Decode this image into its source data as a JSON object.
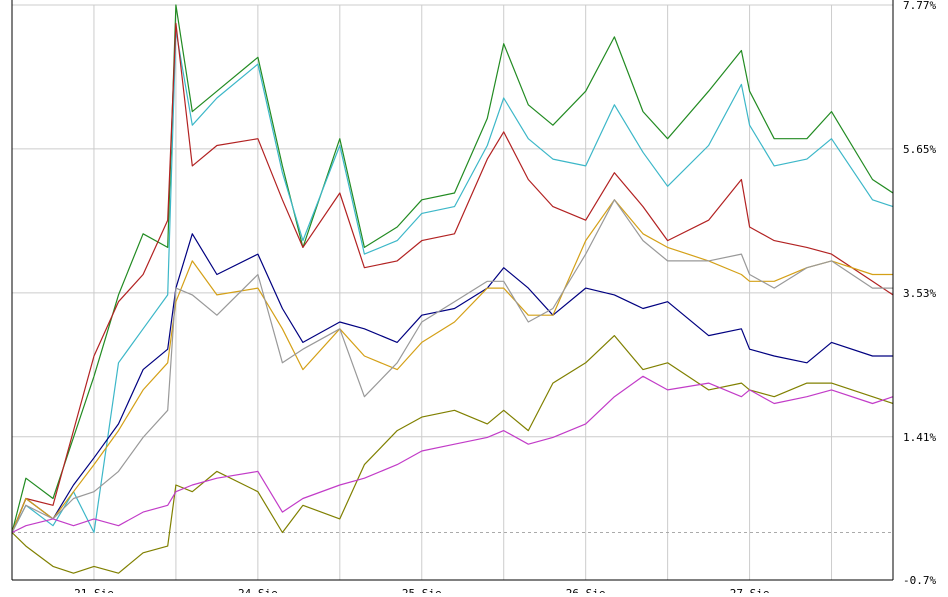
{
  "chart_data": {
    "type": "line",
    "title": "",
    "xlabel": "",
    "ylabel": "",
    "ylim": [
      -0.7,
      7.77
    ],
    "yticks": [
      "7.77%",
      "5.65%",
      "3.53%",
      "1.41%",
      "-0.7%"
    ],
    "ytick_values": [
      7.77,
      5.65,
      3.53,
      1.41,
      -0.7
    ],
    "xtick_labels": [
      "21 Sie",
      "24 Sie",
      "25 Sie",
      "26 Sie",
      "27 Sie"
    ],
    "baseline": 0,
    "grid": true,
    "legend": "none",
    "colors": {
      "grid": "#cccccc",
      "baseline": "#aaaaaa",
      "axis": "#000000"
    },
    "series": [
      {
        "color": "#228b22",
        "x": [
          0,
          0.17,
          0.5,
          0.75,
          1,
          1.3,
          1.6,
          1.9,
          2,
          2.2,
          2.5,
          3,
          3.3,
          3.55,
          4,
          4.3,
          4.7,
          5,
          5.4,
          5.8,
          6,
          6.3,
          6.6,
          7,
          7.35,
          7.7,
          8,
          8.5,
          8.9,
          9,
          9.3,
          9.7,
          10,
          10.5,
          10.75
        ],
        "y": [
          0,
          0.8,
          0.5,
          1.4,
          2.3,
          3.5,
          4.4,
          4.2,
          7.77,
          6.2,
          6.5,
          7.0,
          5.4,
          4.2,
          5.8,
          4.2,
          4.5,
          4.9,
          5.0,
          6.1,
          7.2,
          6.3,
          6.0,
          6.5,
          7.3,
          6.2,
          5.8,
          6.5,
          7.1,
          6.5,
          5.8,
          5.8,
          6.2,
          5.2,
          5.0
        ]
      },
      {
        "color": "#3cb7c8",
        "x": [
          0,
          0.17,
          0.5,
          0.75,
          1,
          1.3,
          1.6,
          1.9,
          2,
          2.2,
          2.5,
          3,
          3.3,
          3.55,
          4,
          4.3,
          4.7,
          5,
          5.4,
          5.8,
          6,
          6.3,
          6.6,
          7,
          7.35,
          7.7,
          8,
          8.5,
          8.9,
          9,
          9.3,
          9.7,
          10,
          10.5,
          10.75
        ],
        "y": [
          0,
          0.4,
          0.1,
          0.6,
          0.0,
          2.5,
          3.0,
          3.5,
          7.4,
          6.0,
          6.4,
          6.9,
          5.3,
          4.3,
          5.7,
          4.1,
          4.3,
          4.7,
          4.8,
          5.7,
          6.4,
          5.8,
          5.5,
          5.4,
          6.3,
          5.6,
          5.1,
          5.7,
          6.6,
          6.0,
          5.4,
          5.5,
          5.8,
          4.9,
          4.8
        ]
      },
      {
        "color": "#b22222",
        "x": [
          0,
          0.17,
          0.5,
          0.75,
          1,
          1.3,
          1.6,
          1.9,
          2,
          2.2,
          2.5,
          3,
          3.3,
          3.55,
          4,
          4.3,
          4.7,
          5,
          5.4,
          5.8,
          6,
          6.3,
          6.6,
          7,
          7.35,
          7.7,
          8,
          8.5,
          8.9,
          9,
          9.3,
          9.7,
          10,
          10.5,
          10.75
        ],
        "y": [
          0,
          0.5,
          0.4,
          1.5,
          2.6,
          3.4,
          3.8,
          4.6,
          7.5,
          5.4,
          5.7,
          5.8,
          4.9,
          4.2,
          5.0,
          3.9,
          4.0,
          4.3,
          4.4,
          5.5,
          5.9,
          5.2,
          4.8,
          4.6,
          5.3,
          4.8,
          4.3,
          4.6,
          5.2,
          4.5,
          4.3,
          4.2,
          4.1,
          3.7,
          3.5
        ]
      },
      {
        "color": "#000080",
        "x": [
          0,
          0.17,
          0.5,
          0.75,
          1,
          1.3,
          1.6,
          1.9,
          2,
          2.2,
          2.5,
          3,
          3.3,
          3.55,
          4,
          4.3,
          4.7,
          5,
          5.4,
          5.8,
          6,
          6.3,
          6.6,
          7,
          7.35,
          7.7,
          8,
          8.5,
          8.9,
          9,
          9.3,
          9.7,
          10,
          10.5,
          10.75
        ],
        "y": [
          0,
          0.5,
          0.2,
          0.7,
          1.1,
          1.6,
          2.4,
          2.7,
          3.6,
          4.4,
          3.8,
          4.1,
          3.3,
          2.8,
          3.1,
          3.0,
          2.8,
          3.2,
          3.3,
          3.6,
          3.9,
          3.6,
          3.2,
          3.6,
          3.5,
          3.3,
          3.4,
          2.9,
          3.0,
          2.7,
          2.6,
          2.5,
          2.8,
          2.6,
          2.6
        ]
      },
      {
        "color": "#d4a017",
        "x": [
          0,
          0.17,
          0.5,
          0.75,
          1,
          1.3,
          1.6,
          1.9,
          2,
          2.2,
          2.5,
          3,
          3.3,
          3.55,
          4,
          4.3,
          4.7,
          5,
          5.4,
          5.8,
          6,
          6.3,
          6.6,
          7,
          7.35,
          7.7,
          8,
          8.5,
          8.9,
          9,
          9.3,
          9.7,
          10,
          10.5,
          10.75
        ],
        "y": [
          0,
          0.5,
          0.2,
          0.6,
          1.0,
          1.5,
          2.1,
          2.5,
          3.4,
          4.0,
          3.5,
          3.6,
          3.0,
          2.4,
          3.0,
          2.6,
          2.4,
          2.8,
          3.1,
          3.6,
          3.6,
          3.2,
          3.2,
          4.3,
          4.9,
          4.4,
          4.2,
          4.0,
          3.8,
          3.7,
          3.7,
          3.9,
          4.0,
          3.8,
          3.8
        ]
      },
      {
        "color": "#999999",
        "x": [
          0,
          0.17,
          0.5,
          0.75,
          1,
          1.3,
          1.6,
          1.9,
          2,
          2.2,
          2.5,
          3,
          3.3,
          3.55,
          4,
          4.3,
          4.7,
          5,
          5.4,
          5.8,
          6,
          6.3,
          6.6,
          7,
          7.35,
          7.7,
          8,
          8.5,
          8.9,
          9,
          9.3,
          9.7,
          10,
          10.5,
          10.75
        ],
        "y": [
          0,
          0.4,
          0.2,
          0.5,
          0.6,
          0.9,
          1.4,
          1.8,
          3.6,
          3.5,
          3.2,
          3.8,
          2.5,
          2.7,
          3.0,
          2.0,
          2.5,
          3.1,
          3.4,
          3.7,
          3.7,
          3.1,
          3.3,
          4.1,
          4.9,
          4.3,
          4.0,
          4.0,
          4.1,
          3.8,
          3.6,
          3.9,
          4.0,
          3.6,
          3.6
        ]
      },
      {
        "color": "#808000",
        "x": [
          0,
          0.17,
          0.5,
          0.75,
          1,
          1.3,
          1.6,
          1.9,
          2,
          2.2,
          2.5,
          3,
          3.3,
          3.55,
          4,
          4.3,
          4.7,
          5,
          5.4,
          5.8,
          6,
          6.3,
          6.6,
          7,
          7.35,
          7.7,
          8,
          8.5,
          8.9,
          9,
          9.3,
          9.7,
          10,
          10.5,
          10.75
        ],
        "y": [
          0,
          -0.2,
          -0.5,
          -0.6,
          -0.5,
          -0.6,
          -0.3,
          -0.2,
          0.7,
          0.6,
          0.9,
          0.6,
          0.0,
          0.4,
          0.2,
          1.0,
          1.5,
          1.7,
          1.8,
          1.6,
          1.8,
          1.5,
          2.2,
          2.5,
          2.9,
          2.4,
          2.5,
          2.1,
          2.2,
          2.1,
          2.0,
          2.2,
          2.2,
          2.0,
          1.9
        ]
      },
      {
        "color": "#c23cc8",
        "x": [
          0,
          0.17,
          0.5,
          0.75,
          1,
          1.3,
          1.6,
          1.9,
          2,
          2.2,
          2.5,
          3,
          3.3,
          3.55,
          4,
          4.3,
          4.7,
          5,
          5.4,
          5.8,
          6,
          6.3,
          6.6,
          7,
          7.35,
          7.7,
          8,
          8.5,
          8.9,
          9,
          9.3,
          9.7,
          10,
          10.5,
          10.75
        ],
        "y": [
          0,
          0.1,
          0.2,
          0.1,
          0.2,
          0.1,
          0.3,
          0.4,
          0.6,
          0.7,
          0.8,
          0.9,
          0.3,
          0.5,
          0.7,
          0.8,
          1.0,
          1.2,
          1.3,
          1.4,
          1.5,
          1.3,
          1.4,
          1.6,
          2.0,
          2.3,
          2.1,
          2.2,
          2.0,
          2.1,
          1.9,
          2.0,
          2.1,
          1.9,
          2.0
        ]
      }
    ]
  }
}
